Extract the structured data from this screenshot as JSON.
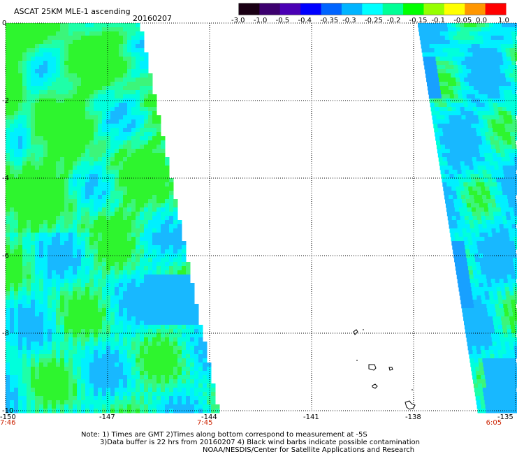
{
  "title": "ASCAT 25KM MLE-1 ascending",
  "date": "20160207",
  "colorbar": {
    "labels": [
      "-3.0",
      "-1.0",
      "-0.5",
      "-0.4",
      "-0.35",
      "-0.3",
      "-0.25",
      "-0.2",
      "-0.15",
      "-0.1",
      "-0.05",
      "0.0",
      "1.0"
    ],
    "colors": [
      "#1a0014",
      "#3c006e",
      "#4a00b4",
      "#0000ff",
      "#0064ff",
      "#00b4ff",
      "#00ffff",
      "#00ff96",
      "#00ff00",
      "#96ff00",
      "#ffff00",
      "#ff9600",
      "#ff0000"
    ]
  },
  "y_axis": {
    "labels": [
      "0",
      "-2",
      "-4",
      "-6",
      "-8",
      "-10"
    ],
    "values": [
      0,
      -2,
      -4,
      -6,
      -8,
      -10
    ],
    "range": [
      -10,
      0
    ]
  },
  "x_axis": {
    "labels": [
      "-150",
      "-147",
      "-144",
      "-141",
      "-138",
      "-135"
    ],
    "values": [
      -150,
      -147,
      -144,
      -141,
      -138,
      -135
    ],
    "range": [
      -150,
      -135
    ]
  },
  "times": [
    {
      "label": "7:46",
      "lon": -150
    },
    {
      "label": "7:45",
      "lon": -144
    },
    {
      "label": "6:05",
      "lon": -135.5
    }
  ],
  "colors": {
    "grid": "#000000",
    "time_text": "#cc2200",
    "swath_green": "#2ef52e",
    "swath_cyan": "#00ffdc",
    "swath_blue": "#00b4ff"
  },
  "note_line1": "Note:  1) Times are GMT  2)Times along bottom correspond to measurement at -5S",
  "note_line2": "3)Data buffer is 22 hrs from 20160207  4) Black wind barbs indicate possible contamination",
  "note_line3": "NOAA/NESDIS/Center for Satellite Applications and Research"
}
